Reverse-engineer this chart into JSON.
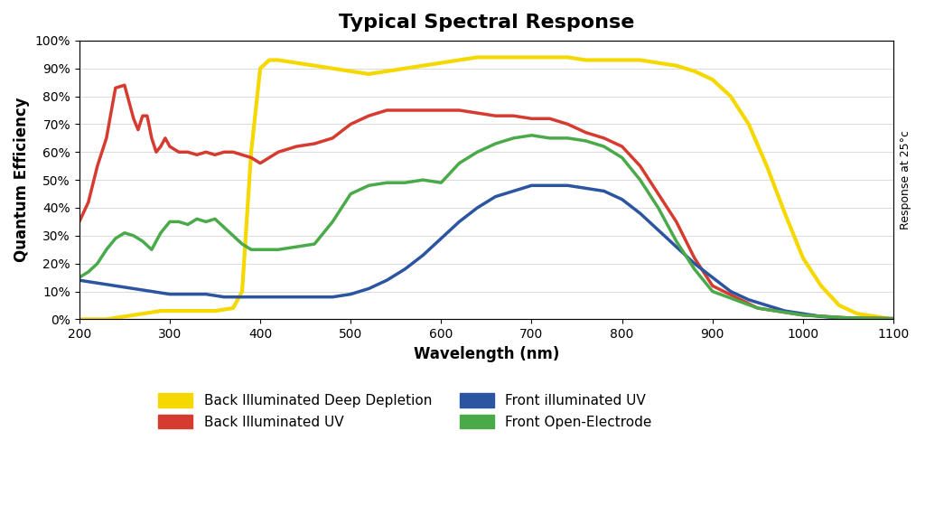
{
  "title": "Typical Spectral Response",
  "xlabel": "Wavelength (nm)",
  "ylabel": "Quantum Efficiency",
  "right_ylabel": "Response at 25°c",
  "xlim": [
    200,
    1100
  ],
  "ylim": [
    0,
    1.0
  ],
  "yticks": [
    0,
    0.1,
    0.2,
    0.3,
    0.4,
    0.5,
    0.6,
    0.7,
    0.8,
    0.9,
    1.0
  ],
  "ytick_labels": [
    "0%",
    "10%",
    "20%",
    "30%",
    "40%",
    "50%",
    "60%",
    "70%",
    "80%",
    "90%",
    "100%"
  ],
  "xticks": [
    200,
    300,
    400,
    500,
    600,
    700,
    800,
    900,
    1000,
    1100
  ],
  "background_color": "#ffffff",
  "legend": [
    {
      "label": "Back Illuminated Deep Depletion",
      "color": "#f5d800"
    },
    {
      "label": "Back Illuminated UV",
      "color": "#d63b2f"
    },
    {
      "label": "Front illuminated UV",
      "color": "#2b55a0"
    },
    {
      "label": "Front Open-Electrode",
      "color": "#4aaa4a"
    }
  ],
  "yellow": {
    "x": [
      200,
      230,
      250,
      270,
      290,
      310,
      330,
      350,
      370,
      380,
      390,
      400,
      410,
      420,
      440,
      460,
      480,
      500,
      520,
      540,
      560,
      580,
      600,
      620,
      640,
      660,
      680,
      700,
      720,
      740,
      760,
      780,
      800,
      820,
      840,
      860,
      880,
      900,
      920,
      940,
      960,
      980,
      1000,
      1020,
      1040,
      1060,
      1080,
      1090,
      1095,
      1100
    ],
    "y": [
      0.0,
      0.0,
      0.01,
      0.02,
      0.03,
      0.03,
      0.03,
      0.03,
      0.04,
      0.1,
      0.6,
      0.9,
      0.93,
      0.93,
      0.92,
      0.91,
      0.9,
      0.89,
      0.88,
      0.89,
      0.9,
      0.91,
      0.92,
      0.93,
      0.94,
      0.94,
      0.94,
      0.94,
      0.94,
      0.94,
      0.93,
      0.93,
      0.93,
      0.93,
      0.92,
      0.91,
      0.89,
      0.86,
      0.8,
      0.7,
      0.55,
      0.38,
      0.22,
      0.12,
      0.05,
      0.02,
      0.01,
      0.005,
      0.002,
      0.0
    ]
  },
  "red": {
    "x": [
      200,
      210,
      220,
      230,
      240,
      250,
      255,
      260,
      265,
      270,
      275,
      280,
      285,
      290,
      295,
      300,
      310,
      320,
      330,
      340,
      350,
      360,
      370,
      380,
      390,
      400,
      420,
      440,
      460,
      480,
      500,
      520,
      540,
      560,
      580,
      600,
      620,
      640,
      660,
      680,
      700,
      720,
      740,
      760,
      780,
      800,
      820,
      840,
      860,
      880,
      900,
      950,
      1000,
      1050,
      1100
    ],
    "y": [
      0.35,
      0.42,
      0.55,
      0.65,
      0.83,
      0.84,
      0.78,
      0.72,
      0.68,
      0.73,
      0.73,
      0.65,
      0.6,
      0.62,
      0.65,
      0.62,
      0.6,
      0.6,
      0.59,
      0.6,
      0.59,
      0.6,
      0.6,
      0.59,
      0.58,
      0.56,
      0.6,
      0.62,
      0.63,
      0.65,
      0.7,
      0.73,
      0.75,
      0.75,
      0.75,
      0.75,
      0.75,
      0.74,
      0.73,
      0.73,
      0.72,
      0.72,
      0.7,
      0.67,
      0.65,
      0.62,
      0.55,
      0.45,
      0.35,
      0.22,
      0.12,
      0.04,
      0.015,
      0.005,
      0.003
    ]
  },
  "blue": {
    "x": [
      200,
      220,
      240,
      260,
      280,
      300,
      320,
      340,
      360,
      380,
      400,
      420,
      440,
      460,
      480,
      500,
      520,
      540,
      560,
      580,
      600,
      620,
      640,
      660,
      680,
      700,
      720,
      740,
      760,
      780,
      800,
      820,
      840,
      860,
      880,
      900,
      920,
      940,
      960,
      980,
      1000,
      1020,
      1040,
      1060,
      1080,
      1100
    ],
    "y": [
      0.14,
      0.13,
      0.12,
      0.11,
      0.1,
      0.09,
      0.09,
      0.09,
      0.08,
      0.08,
      0.08,
      0.08,
      0.08,
      0.08,
      0.08,
      0.09,
      0.11,
      0.14,
      0.18,
      0.23,
      0.29,
      0.35,
      0.4,
      0.44,
      0.46,
      0.48,
      0.48,
      0.48,
      0.47,
      0.46,
      0.43,
      0.38,
      0.32,
      0.26,
      0.2,
      0.15,
      0.1,
      0.07,
      0.05,
      0.03,
      0.02,
      0.01,
      0.005,
      0.003,
      0.001,
      0.0
    ]
  },
  "green": {
    "x": [
      200,
      210,
      220,
      230,
      240,
      250,
      260,
      270,
      280,
      290,
      300,
      310,
      320,
      330,
      340,
      350,
      360,
      370,
      380,
      390,
      400,
      420,
      440,
      460,
      480,
      500,
      520,
      540,
      560,
      580,
      600,
      620,
      640,
      660,
      680,
      700,
      720,
      740,
      760,
      780,
      800,
      820,
      840,
      860,
      880,
      900,
      950,
      1000,
      1050,
      1100
    ],
    "y": [
      0.15,
      0.17,
      0.2,
      0.25,
      0.29,
      0.31,
      0.3,
      0.28,
      0.25,
      0.31,
      0.35,
      0.35,
      0.34,
      0.36,
      0.35,
      0.36,
      0.33,
      0.3,
      0.27,
      0.25,
      0.25,
      0.25,
      0.26,
      0.27,
      0.35,
      0.45,
      0.48,
      0.49,
      0.49,
      0.5,
      0.49,
      0.56,
      0.6,
      0.63,
      0.65,
      0.66,
      0.65,
      0.65,
      0.64,
      0.62,
      0.58,
      0.5,
      0.4,
      0.28,
      0.18,
      0.1,
      0.04,
      0.015,
      0.005,
      0.002
    ]
  }
}
